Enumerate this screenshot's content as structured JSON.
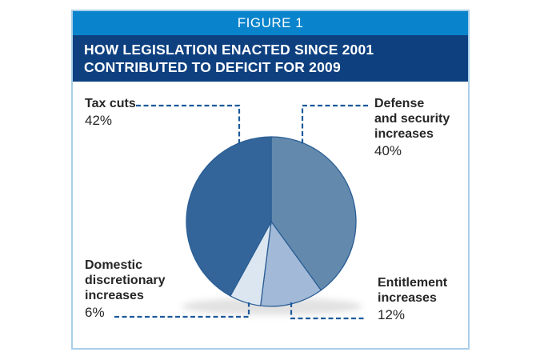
{
  "figure": {
    "band_label": "FIGURE 1",
    "title_line1": "HOW LEGISLATION ENACTED SINCE 2001",
    "title_line2": "CONTRIBUTED TO DEFICIT FOR 2009"
  },
  "colors": {
    "figure_band": "#0984cc",
    "title_band": "#0e4080",
    "border": "#a9cfe9",
    "leader": "#1d5a9b",
    "slice_stroke": "#2a5e94",
    "text": "#262626"
  },
  "callouts": {
    "tax_cuts": {
      "lines": [
        "Tax cuts"
      ],
      "pct": "42%"
    },
    "defense": {
      "lines": [
        "Defense",
        "and security",
        "increases"
      ],
      "pct": "40%"
    },
    "domestic": {
      "lines": [
        "Domestic",
        "discretionary",
        "increases"
      ],
      "pct": "6%"
    },
    "entitlement": {
      "lines": [
        "Entitlement",
        "increases"
      ],
      "pct": "12%"
    }
  },
  "chart_data": {
    "type": "pie",
    "title": "HOW LEGISLATION ENACTED SINCE 2001 CONTRIBUTED TO DEFICIT FOR 2009",
    "figure_label": "FIGURE 1",
    "start_angle_deg": 0,
    "direction": "clockwise",
    "legend_position": "callout-labels",
    "slices": [
      {
        "label": "Defense and security increases",
        "value": 40,
        "color": "#6389ad"
      },
      {
        "label": "Entitlement increases",
        "value": 12,
        "color": "#a2bad7"
      },
      {
        "label": "Domestic discretionary increases",
        "value": 6,
        "color": "#dce6f1"
      },
      {
        "label": "Tax cuts",
        "value": 42,
        "color": "#34659a"
      }
    ]
  }
}
